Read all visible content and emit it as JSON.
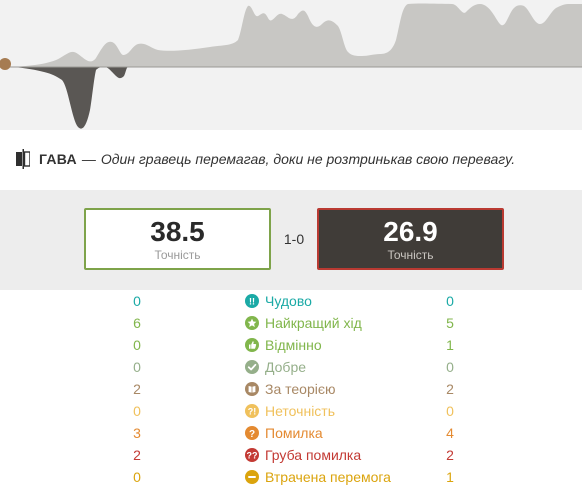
{
  "verdict": {
    "icon": "balance-icon",
    "title": "ГАВА",
    "dash": "—",
    "description": "Один гравець перемагав, доки не розтринькав свою перевагу."
  },
  "scores": {
    "white": {
      "accuracy": "38.5",
      "label": "Точність"
    },
    "black": {
      "accuracy": "26.9",
      "label": "Точність"
    },
    "result": "1-0"
  },
  "colors": {
    "white_border": "#7ea34a",
    "black_border": "#b93a32",
    "black_box": "#403c38"
  },
  "classifications": [
    {
      "key": "brilliant",
      "label": "Чудово",
      "white": "0",
      "black": "0",
      "color": "#1baaa6",
      "icon": "double-exclamation-icon"
    },
    {
      "key": "best",
      "label": "Найкращий хід",
      "white": "6",
      "black": "5",
      "color": "#81b64c",
      "icon": "star-icon"
    },
    {
      "key": "excellent",
      "label": "Відмінно",
      "white": "0",
      "black": "1",
      "color": "#81b64c",
      "icon": "thumbs-up-icon"
    },
    {
      "key": "good",
      "label": "Добре",
      "white": "0",
      "black": "0",
      "color": "#95af8a",
      "icon": "check-icon"
    },
    {
      "key": "book",
      "label": "За теорією",
      "white": "2",
      "black": "2",
      "color": "#a88865",
      "icon": "book-icon"
    },
    {
      "key": "inaccuracy",
      "label": "Неточність",
      "white": "0",
      "black": "0",
      "color": "#f0c15c",
      "icon": "question-exclamation-icon"
    },
    {
      "key": "mistake",
      "label": "Помилка",
      "white": "3",
      "black": "4",
      "color": "#e48a31",
      "icon": "question-icon"
    },
    {
      "key": "blunder",
      "label": "Груба помилка",
      "white": "2",
      "black": "2",
      "color": "#c33a34",
      "icon": "double-question-icon"
    },
    {
      "key": "miss",
      "label": "Втрачена перемога",
      "white": "0",
      "black": "1",
      "color": "#dba40d",
      "icon": "minus-icon"
    }
  ]
}
